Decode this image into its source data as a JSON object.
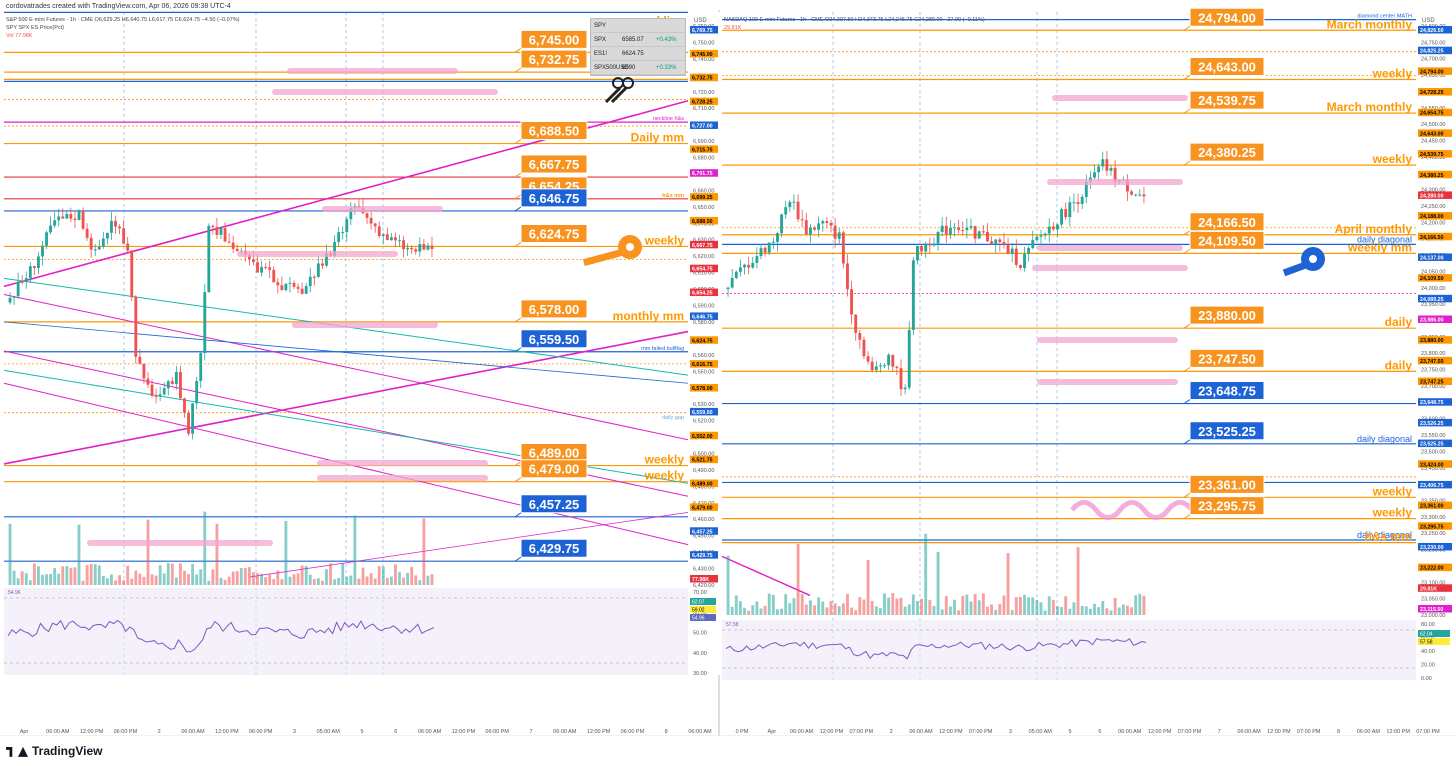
{
  "header": {
    "attribution": "cordovatrades created with TradingView.com, Apr 06, 2026 09:38 UTC-4"
  },
  "footer": {
    "brand": "TradingView"
  },
  "es_panel": {
    "symbol_line": "S&P 500 E-mini Futures · 1h · CME  O6,629.25 H6,640.75 L6,617.75 C6,624.75 −4.50 (−0.07%)",
    "compare_line": "SPY SPX ES Price(Pct)",
    "vol_label": "Vol",
    "vol_value": "77.98K",
    "axis_unit": "USD",
    "table": [
      {
        "sym": "SPY",
        "val": "",
        "chg": ""
      },
      {
        "sym": "SPX",
        "val": "6585.07",
        "chg": "+0.43%"
      },
      {
        "sym": "ES1!",
        "val": "6624.75",
        "chg": ""
      },
      {
        "sym": "SPX500USD",
        "val": "6590",
        "chg": "+0.33%"
      }
    ],
    "callouts": [
      "6,745.00",
      "6,732.75",
      "6,688.50",
      "6,667.75",
      "6,654.25",
      "6,646.75",
      "6,624.75",
      "6,578.00",
      "6,559.50",
      "6,489.00",
      "6,479.00",
      "6,457.25",
      "6,429.75"
    ],
    "level_texts": [
      "neckline",
      "weekly",
      "weekly",
      "Daily mm",
      "h&s mm",
      "weekly",
      "monthly mm",
      "weekly",
      "weekly",
      "neckline h&s",
      "mm failed bullflag",
      "daily gap"
    ],
    "y_ticks": [
      "6,760.00",
      "6,750.00",
      "6,740.00",
      "6,730.00",
      "6,720.00",
      "6,710.00",
      "6,700.00",
      "6,690.00",
      "6,680.00",
      "6,670.00",
      "6,660.00",
      "6,650.00",
      "6,640.00",
      "6,630.00",
      "6,620.00",
      "6,610.00",
      "6,600.00",
      "6,590.00",
      "6,580.00",
      "6,570.00",
      "6,560.00",
      "6,550.00",
      "6,540.00",
      "6,530.00",
      "6,520.00",
      "6,510.00",
      "6,500.00",
      "6,490.00",
      "6,480.00",
      "6,470.00",
      "6,460.00",
      "6,450.00",
      "6,440.00",
      "6,430.00",
      "6,420.00"
    ],
    "axis_tags": [
      "6,769.75",
      "6,745.00",
      "6,732.75",
      "6,728.25",
      "6,727.00",
      "6,715.75",
      "6,701.75",
      "6,699.25",
      "6,688.50",
      "6,667.75",
      "6,654.75",
      "6,654.25",
      "6,646.75",
      "6,624.75",
      "6,616.75",
      "6,578.00",
      "6,559.50",
      "6,552.00",
      "6,521.75",
      "6,489.00",
      "6,479.00",
      "6,457.25",
      "6,429.75",
      "77.98K"
    ],
    "rsi_ticks": [
      "70.00",
      "60.00",
      "50.00",
      "40.00",
      "30.00"
    ],
    "rsi_tags": [
      "62.07",
      "59.02",
      "54.96"
    ],
    "rsi_label": "54.96",
    "x_labels": [
      "Apr",
      "06:00 AM",
      "12:00 PM",
      "06:00 PM",
      "2",
      "06:00 AM",
      "12:00 PM",
      "06:00 PM",
      "3",
      "05:00 AM",
      "5",
      "6",
      "06:00 AM",
      "12:00 PM",
      "06:00 PM",
      "7",
      "06:00 AM",
      "12:00 PM",
      "06:00 PM",
      "8",
      "06:00 AM"
    ]
  },
  "nq_panel": {
    "symbol_line": "NASDAQ 100 E-mini Futures · 1h · CME  O24,307.50 H24,373.75 L24,245.75 C24,280.00 −27.00 (−0.11%)",
    "vol_value": "29.81K",
    "axis_unit": "USD",
    "callouts": [
      "24,794.00",
      "24,643.00",
      "24,539.75",
      "24,380.25",
      "24,166.50",
      "24,109.50",
      "23,880.00",
      "23,747.50",
      "23,648.75",
      "23,525.25",
      "23,361.00",
      "23,295.75"
    ],
    "level_texts": [
      "March monthly",
      "weekly",
      "March monthly",
      "weekly",
      "April monthly",
      "daily diagonal",
      "weekly mm",
      "daily",
      "daily",
      "daily diagonal",
      "weekly",
      "weekly",
      "daily diagonal",
      "h&s mm",
      "diamond center MATH"
    ],
    "y_ticks": [
      "24,800.00",
      "24,750.00",
      "24,700.00",
      "24,650.00",
      "24,600.00",
      "24,550.00",
      "24,500.00",
      "24,450.00",
      "24,400.00",
      "24,350.00",
      "24,300.00",
      "24,250.00",
      "24,200.00",
      "24,150.00",
      "24,100.00",
      "24,050.00",
      "24,000.00",
      "23,950.00",
      "23,900.00",
      "23,850.00",
      "23,800.00",
      "23,750.00",
      "23,700.00",
      "23,650.00",
      "23,600.00",
      "23,550.00",
      "23,500.00",
      "23,450.00",
      "23,400.00",
      "23,350.00",
      "23,300.00",
      "23,250.00",
      "23,200.00",
      "23,150.00",
      "23,100.00",
      "23,050.00",
      "23,000.00"
    ],
    "axis_tags": [
      "24,826.50",
      "24,825.25",
      "24,794.00",
      "24,728.25",
      "24,654.75",
      "24,643.00",
      "24,539.75",
      "24,380.25",
      "24,280.00",
      "24,188.00",
      "24,166.50",
      "24,137.00",
      "24,109.50",
      "24,089.25",
      "23,986.00",
      "23,880.00",
      "23,747.50",
      "23,747.25",
      "23,648.75",
      "23,526.25",
      "23,525.25",
      "23,424.00",
      "23,406.75",
      "23,361.00",
      "23,295.75",
      "23,230.00",
      "23,222.00",
      "29.81K",
      "23,115.50"
    ],
    "rsi_ticks": [
      "80.00",
      "60.00",
      "40.00",
      "20.00",
      "0.00"
    ],
    "rsi_tags": [
      "62.04",
      "57.58"
    ],
    "rsi_label": "57.58",
    "x_labels": [
      "0 PM",
      "Apr",
      "06:00 AM",
      "12:00 PM",
      "07:00 PM",
      "2",
      "06:00 AM",
      "12:00 PM",
      "07:00 PM",
      "3",
      "05:00 AM",
      "5",
      "6",
      "06:00 AM",
      "12:00 PM",
      "07:00 PM",
      "7",
      "06:00 AM",
      "12:00 PM",
      "07:00 PM",
      "8",
      "06:00 AM",
      "12:00 PM",
      "07:00 PM"
    ]
  },
  "colors": {
    "orange": "#ff9800",
    "orange_fill": "#f7931e",
    "blue": "#1e63d6",
    "magenta": "#e020c8",
    "teal": "#14b8b0",
    "red_line": "#e8333f",
    "up": "#26a69a",
    "down": "#ef5350",
    "pink_marker": "#f4a7d0",
    "rsi_line": "#7e57c2",
    "rsi_fill": "#ede7f6"
  },
  "chart_data": [
    {
      "type": "candlestick",
      "title": "S&P 500 E-mini Futures · 1h · CME",
      "ylim": [
        6415,
        6770
      ],
      "levels": [
        {
          "value": 6769.75,
          "color": "blue"
        },
        {
          "value": 6745.0,
          "color": "orange",
          "label": "weekly"
        },
        {
          "value": 6732.75,
          "color": "orange",
          "label": "weekly"
        },
        {
          "value": 6728.25,
          "color": "orange"
        },
        {
          "value": 6727.0,
          "color": "blue"
        },
        {
          "value": 6701.75,
          "color": "magenta",
          "label": "neckline h&s"
        },
        {
          "value": 6688.5,
          "color": "orange",
          "label": "Daily mm"
        },
        {
          "value": 6667.75,
          "color": "red"
        },
        {
          "value": 6654.25,
          "color": "red",
          "label": "h&s mm"
        },
        {
          "value": 6646.75,
          "color": "blue"
        },
        {
          "value": 6624.75,
          "color": "orange",
          "label": "weekly"
        },
        {
          "value": 6578.0,
          "color": "orange",
          "label": "monthly mm"
        },
        {
          "value": 6559.5,
          "color": "blue",
          "label": "mm failed bullflag"
        },
        {
          "value": 6489.0,
          "color": "orange",
          "label": "weekly"
        },
        {
          "value": 6479.0,
          "color": "orange",
          "label": "weekly"
        },
        {
          "value": 6457.25,
          "color": "blue"
        },
        {
          "value": 6429.75,
          "color": "blue"
        }
      ],
      "close_last": 6624.75
    },
    {
      "type": "candlestick",
      "title": "NASDAQ 100 E-mini Futures · 1h · CME",
      "ylim": [
        23000,
        24850
      ],
      "levels": [
        {
          "value": 24826.5,
          "color": "blue",
          "label": "diamond center MATH"
        },
        {
          "value": 24794.0,
          "color": "orange",
          "label": "March monthly"
        },
        {
          "value": 24643.0,
          "color": "orange",
          "label": "weekly"
        },
        {
          "value": 24539.75,
          "color": "orange",
          "label": "March monthly"
        },
        {
          "value": 24380.25,
          "color": "orange",
          "label": "weekly"
        },
        {
          "value": 24166.5,
          "color": "orange",
          "label": "April monthly"
        },
        {
          "value": 24137.0,
          "color": "blue",
          "label": "daily diagonal"
        },
        {
          "value": 24109.5,
          "color": "orange",
          "label": "weekly mm"
        },
        {
          "value": 23880.0,
          "color": "orange",
          "label": "daily"
        },
        {
          "value": 23747.5,
          "color": "orange",
          "label": "daily"
        },
        {
          "value": 23648.75,
          "color": "blue"
        },
        {
          "value": 23525.25,
          "color": "blue",
          "label": "daily diagonal"
        },
        {
          "value": 23406.75,
          "color": "blue"
        },
        {
          "value": 23361.0,
          "color": "orange",
          "label": "weekly"
        },
        {
          "value": 23295.75,
          "color": "orange",
          "label": "weekly"
        },
        {
          "value": 23230.0,
          "color": "blue",
          "label": "daily diagonal"
        },
        {
          "value": 23222.0,
          "color": "orange",
          "label": "h&s mm"
        }
      ],
      "close_last": 24280.0
    }
  ]
}
